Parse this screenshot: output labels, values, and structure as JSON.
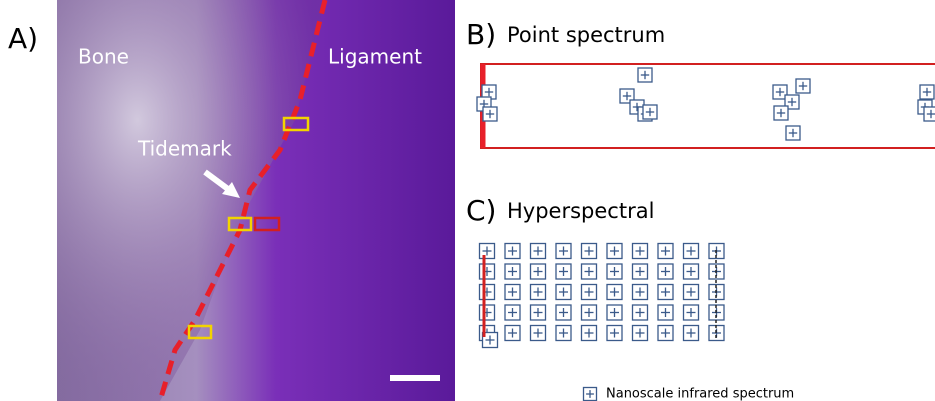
{
  "panel_a": {
    "label": "A)",
    "bone": "Bone",
    "ligament": "Ligament",
    "tidemark": "Tidemark"
  },
  "panel_b": {
    "label": "B)",
    "title": "Point spectrum"
  },
  "panel_c": {
    "label": "C)",
    "title": "Hyperspectral"
  },
  "legend": {
    "text": "Nanoscale infrared spectrum"
  }
}
